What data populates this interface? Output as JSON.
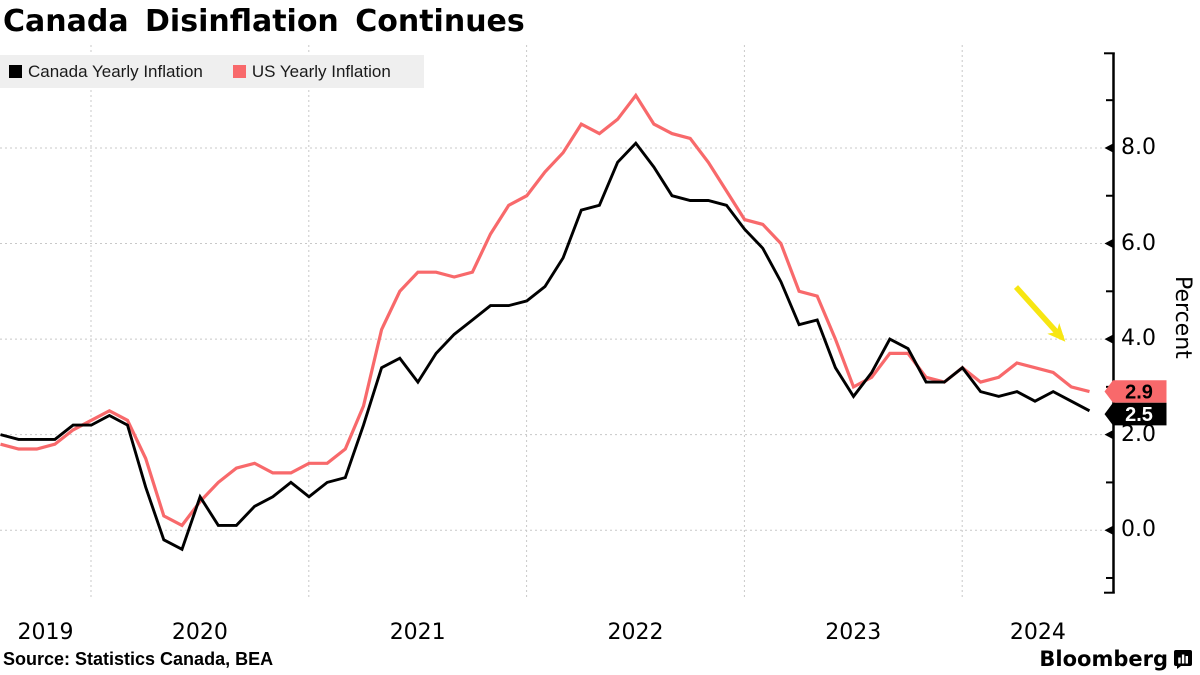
{
  "title": "Canada Disinflation Continues",
  "source": "Source: Statistics Canada, BEA",
  "logo": {
    "text": "Bloomberg"
  },
  "legend": [
    {
      "label": "Canada Yearly Inflation",
      "color": "#000000"
    },
    {
      "label": "US Yearly Inflation",
      "color": "#f8696b"
    }
  ],
  "y_axis": {
    "label": "Percent",
    "ticks": [
      "8.0",
      "6.0",
      "4.0",
      "2.0",
      "0.0"
    ],
    "tick_values": [
      8,
      6,
      4,
      2,
      0
    ],
    "minor_tick_values": [
      9,
      7,
      5,
      3,
      1,
      -1
    ]
  },
  "x_axis": {
    "years": [
      "2019",
      "2020",
      "2021",
      "2022",
      "2023",
      "2024"
    ]
  },
  "end_labels": [
    {
      "text": "2.9",
      "bg": "#f8696b",
      "fg": "#000000",
      "value": 2.9
    },
    {
      "text": "2.5",
      "bg": "#000000",
      "fg": "#ffffff",
      "value": 2.5
    }
  ],
  "annotation_arrow": {
    "color": "#f7e612"
  },
  "colors": {
    "grid": "#c8c8c8",
    "axis": "#000000",
    "legend_bg": "#efefef"
  },
  "chart_data": {
    "type": "line",
    "title": "Canada Disinflation Continues",
    "ylabel": "Percent",
    "x_start": "2019-07",
    "x_end": "2024-07",
    "frequency": "monthly",
    "ylim": [
      -1.3,
      10
    ],
    "yticks": [
      0,
      2,
      4,
      6,
      8
    ],
    "grid": true,
    "legend_position": "top-left",
    "x_year_ticks": [
      2019,
      2020,
      2021,
      2022,
      2023,
      2024
    ],
    "series": [
      {
        "name": "US Yearly Inflation",
        "color": "#f8696b",
        "last_value_label": "2.9",
        "values": [
          1.8,
          1.7,
          1.7,
          1.8,
          2.1,
          2.3,
          2.5,
          2.3,
          1.5,
          0.3,
          0.1,
          0.6,
          1.0,
          1.3,
          1.4,
          1.2,
          1.2,
          1.4,
          1.4,
          1.7,
          2.6,
          4.2,
          5.0,
          5.4,
          5.4,
          5.3,
          5.4,
          6.2,
          6.8,
          7.0,
          7.5,
          7.9,
          8.5,
          8.3,
          8.6,
          9.1,
          8.5,
          8.3,
          8.2,
          7.7,
          7.1,
          6.5,
          6.4,
          6.0,
          5.0,
          4.9,
          4.0,
          3.0,
          3.2,
          3.7,
          3.7,
          3.2,
          3.1,
          3.4,
          3.1,
          3.2,
          3.5,
          3.4,
          3.3,
          3.0,
          2.9
        ]
      },
      {
        "name": "Canada Yearly Inflation",
        "color": "#000000",
        "last_value_label": "2.5",
        "values": [
          2.0,
          1.9,
          1.9,
          1.9,
          2.2,
          2.2,
          2.4,
          2.2,
          0.9,
          -0.2,
          -0.4,
          0.7,
          0.1,
          0.1,
          0.5,
          0.7,
          1.0,
          0.7,
          1.0,
          1.1,
          2.2,
          3.4,
          3.6,
          3.1,
          3.7,
          4.1,
          4.4,
          4.7,
          4.7,
          4.8,
          5.1,
          5.7,
          6.7,
          6.8,
          7.7,
          8.1,
          7.6,
          7.0,
          6.9,
          6.9,
          6.8,
          6.3,
          5.9,
          5.2,
          4.3,
          4.4,
          3.4,
          2.8,
          3.3,
          4.0,
          3.8,
          3.1,
          3.1,
          3.4,
          2.9,
          2.8,
          2.9,
          2.7,
          2.9,
          2.7,
          2.5
        ]
      }
    ]
  }
}
